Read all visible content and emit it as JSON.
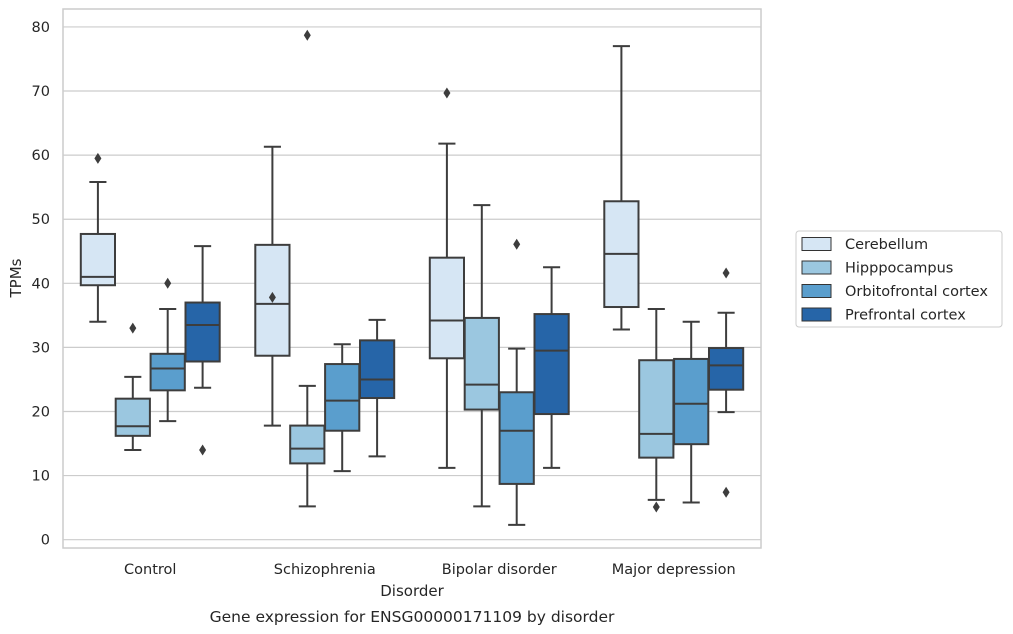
{
  "chart_data": {
    "type": "boxplot",
    "caption": "Gene expression for ENSG00000171109 by disorder",
    "xlabel": "Disorder",
    "ylabel": "TPMs",
    "ylim": [
      -1.3,
      82.8
    ],
    "yticks": [
      0,
      10,
      20,
      30,
      40,
      50,
      60,
      70,
      80
    ],
    "grid": true,
    "legend_position": "right",
    "categories": [
      "Control",
      "Schizophrenia",
      "Bipolar disorder",
      "Major depression"
    ],
    "series": [
      {
        "name": "Cerebellum",
        "color": "#d6e6f4",
        "boxes": [
          {
            "whisker_low": 34.0,
            "q1": 39.7,
            "median": 41.0,
            "q3": 47.7,
            "whisker_high": 55.8,
            "outliers": [
              59.5
            ]
          },
          {
            "whisker_low": 17.8,
            "q1": 28.7,
            "median": 36.8,
            "q3": 46.0,
            "whisker_high": 61.3,
            "outliers": [
              37.8
            ]
          },
          {
            "whisker_low": 11.2,
            "q1": 28.3,
            "median": 34.2,
            "q3": 44.0,
            "whisker_high": 61.8,
            "outliers": [
              69.7
            ]
          },
          {
            "whisker_low": 32.8,
            "q1": 36.3,
            "median": 44.6,
            "q3": 52.8,
            "whisker_high": 77.0,
            "outliers": []
          }
        ]
      },
      {
        "name": "Hipppocampus",
        "color": "#9bc7e0",
        "boxes": [
          {
            "whisker_low": 14.0,
            "q1": 16.2,
            "median": 17.7,
            "q3": 22.0,
            "whisker_high": 25.4,
            "outliers": [
              33.0
            ]
          },
          {
            "whisker_low": 5.2,
            "q1": 11.9,
            "median": 14.2,
            "q3": 17.8,
            "whisker_high": 24.0,
            "outliers": [
              78.7
            ]
          },
          {
            "whisker_low": 5.2,
            "q1": 20.3,
            "median": 24.2,
            "q3": 34.6,
            "whisker_high": 52.2,
            "outliers": []
          },
          {
            "whisker_low": 6.2,
            "q1": 12.8,
            "median": 16.5,
            "q3": 28.0,
            "whisker_high": 36.0,
            "outliers": [
              5.1
            ]
          }
        ]
      },
      {
        "name": "Orbitofrontal cortex",
        "color": "#5a9ecd",
        "boxes": [
          {
            "whisker_low": 18.5,
            "q1": 23.3,
            "median": 26.7,
            "q3": 29.0,
            "whisker_high": 36.0,
            "outliers": [
              40.0
            ]
          },
          {
            "whisker_low": 10.7,
            "q1": 17.0,
            "median": 21.7,
            "q3": 27.4,
            "whisker_high": 30.5,
            "outliers": []
          },
          {
            "whisker_low": 2.3,
            "q1": 8.7,
            "median": 17.0,
            "q3": 23.0,
            "whisker_high": 29.8,
            "outliers": [
              46.1
            ]
          },
          {
            "whisker_low": 5.8,
            "q1": 14.9,
            "median": 21.2,
            "q3": 28.2,
            "whisker_high": 34.0,
            "outliers": []
          }
        ]
      },
      {
        "name": "Prefrontal cortex",
        "color": "#2665a8",
        "boxes": [
          {
            "whisker_low": 23.7,
            "q1": 27.8,
            "median": 33.5,
            "q3": 37.0,
            "whisker_high": 45.8,
            "outliers": [
              14.0
            ]
          },
          {
            "whisker_low": 13.0,
            "q1": 22.1,
            "median": 25.0,
            "q3": 31.1,
            "whisker_high": 34.3,
            "outliers": []
          },
          {
            "whisker_low": 11.2,
            "q1": 19.6,
            "median": 29.5,
            "q3": 35.2,
            "whisker_high": 42.5,
            "outliers": []
          },
          {
            "whisker_low": 19.9,
            "q1": 23.4,
            "median": 27.2,
            "q3": 29.9,
            "whisker_high": 35.4,
            "outliers": [
              41.6,
              7.4
            ]
          }
        ]
      }
    ]
  }
}
